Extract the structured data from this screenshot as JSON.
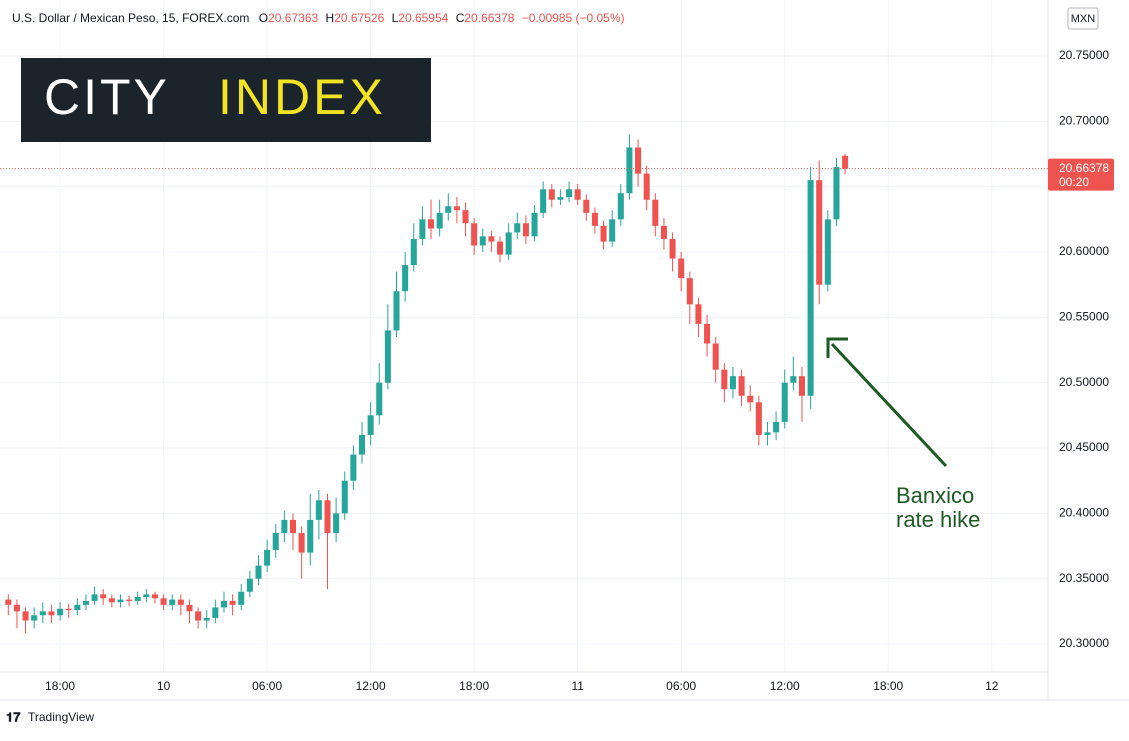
{
  "chart_data": {
    "type": "candlestick",
    "title": "U.S. Dollar / Mexican Peso, 15, FOREX.com",
    "ohlc_labels": [
      "O",
      "H",
      "L",
      "C"
    ],
    "change": "−0.00985 (−0.05%)",
    "currency": "MXN",
    "countdown": "00:20",
    "logo": [
      "CITY",
      "INDEX"
    ],
    "annotation": [
      "Banxico",
      "rate hike"
    ],
    "footer": "TradingView",
    "up_color": "#26a69a",
    "down_color": "#ef5350",
    "grid": true,
    "xlim": [
      14.75,
      75.26
    ],
    "xticks": [
      {
        "value": 18,
        "label": "18:00"
      },
      {
        "value": 24,
        "label": "10"
      },
      {
        "value": 30,
        "label": "06:00"
      },
      {
        "value": 36,
        "label": "12:00"
      },
      {
        "value": 42,
        "label": "18:00"
      },
      {
        "value": 48,
        "label": "11"
      },
      {
        "value": 54,
        "label": "06:00"
      },
      {
        "value": 60,
        "label": "12:00"
      },
      {
        "value": 66,
        "label": "18:00"
      },
      {
        "value": 72,
        "label": "12"
      }
    ],
    "ylim": [
      20.2786,
      20.7898
    ],
    "yticks": [
      {
        "value": 20.3,
        "label": "20.30000"
      },
      {
        "value": 20.35,
        "label": "20.35000"
      },
      {
        "value": 20.4,
        "label": "20.40000"
      },
      {
        "value": 20.45,
        "label": "20.45000"
      },
      {
        "value": 20.5,
        "label": "20.50000"
      },
      {
        "value": 20.55,
        "label": "20.55000"
      },
      {
        "value": 20.6,
        "label": "20.60000"
      },
      {
        "value": 20.65,
        "label": "20.65000"
      },
      {
        "value": 20.7,
        "label": "20.70000"
      },
      {
        "value": 20.75,
        "label": "20.75000"
      }
    ],
    "x": [
      15,
      15.5,
      16,
      16.5,
      17,
      17.5,
      18,
      18.5,
      19,
      19.5,
      20,
      20.5,
      21,
      21.5,
      22,
      22.5,
      23,
      23.5,
      24,
      24.5,
      25,
      25.5,
      26,
      26.5,
      27,
      27.5,
      28,
      28.5,
      29,
      29.5,
      30,
      30.5,
      31,
      31.5,
      32,
      32.5,
      33,
      33.5,
      34,
      34.5,
      35,
      35.5,
      36,
      36.5,
      37,
      37.5,
      38,
      38.5,
      39,
      39.5,
      40,
      40.5,
      41,
      41.5,
      42,
      42.5,
      43,
      43.5,
      44,
      44.5,
      45,
      45.5,
      46,
      46.5,
      47,
      47.5,
      48,
      48.5,
      49,
      49.5,
      50,
      50.5,
      51,
      51.5,
      52,
      52.5,
      53,
      53.5,
      54,
      54.5,
      55,
      55.5,
      56,
      56.5,
      57,
      57.5,
      58,
      58.5,
      59,
      59.5,
      60,
      60.5,
      61,
      61.5,
      62,
      62.5,
      63,
      63.5
    ],
    "open": [
      20.334,
      20.33,
      20.325,
      20.318,
      20.322,
      20.325,
      20.322,
      20.327,
      20.326,
      20.33,
      20.333,
      20.338,
      20.335,
      20.332,
      20.334,
      20.333,
      20.336,
      20.338,
      20.335,
      20.33,
      20.334,
      20.33,
      20.325,
      20.318,
      20.32,
      20.328,
      20.333,
      20.33,
      20.34,
      20.35,
      20.36,
      20.372,
      20.385,
      20.395,
      20.385,
      20.37,
      20.395,
      20.41,
      20.385,
      20.4,
      20.425,
      20.445,
      20.46,
      20.475,
      20.5,
      20.54,
      20.57,
      20.59,
      20.61,
      20.625,
      20.618,
      20.63,
      20.635,
      20.632,
      20.622,
      20.605,
      20.612,
      20.608,
      20.598,
      20.615,
      20.622,
      20.612,
      20.63,
      20.648,
      20.64,
      20.642,
      20.648,
      20.64,
      20.63,
      20.62,
      20.608,
      20.625,
      20.645,
      20.68,
      20.66,
      20.64,
      20.62,
      20.61,
      20.595,
      20.58,
      20.56,
      20.545,
      20.53,
      20.51,
      20.495,
      20.505,
      20.49,
      20.485,
      20.46,
      20.462,
      20.47,
      20.5,
      20.505,
      20.49,
      20.655,
      20.575,
      20.625,
      20.67363
    ],
    "high": [
      20.338,
      20.334,
      20.328,
      20.328,
      20.332,
      20.33,
      20.332,
      20.331,
      20.335,
      20.338,
      20.344,
      20.342,
      20.338,
      20.338,
      20.337,
      20.34,
      20.342,
      20.34,
      20.338,
      20.338,
      20.338,
      20.334,
      20.328,
      20.326,
      20.334,
      20.34,
      20.338,
      20.346,
      20.356,
      20.368,
      20.38,
      20.392,
      20.402,
      20.4,
      20.39,
      20.415,
      20.418,
      20.415,
      20.412,
      20.432,
      20.452,
      20.47,
      20.485,
      20.515,
      20.56,
      20.585,
      20.6,
      20.622,
      20.635,
      20.64,
      20.64,
      20.645,
      20.642,
      20.638,
      20.626,
      20.618,
      20.616,
      20.612,
      20.622,
      20.63,
      20.628,
      20.636,
      20.654,
      20.652,
      20.648,
      20.654,
      20.652,
      20.644,
      20.634,
      20.624,
      20.632,
      20.652,
      20.69,
      20.686,
      20.666,
      20.645,
      20.626,
      20.615,
      20.6,
      20.585,
      20.565,
      20.552,
      20.535,
      20.515,
      20.512,
      20.51,
      20.498,
      20.49,
      20.47,
      20.478,
      20.51,
      20.52,
      20.512,
      20.665,
      20.67,
      20.632,
      20.672,
      20.67526
    ],
    "low": [
      20.322,
      20.312,
      20.308,
      20.312,
      20.316,
      20.316,
      20.318,
      20.32,
      20.322,
      20.326,
      20.33,
      20.33,
      20.328,
      20.328,
      20.329,
      20.33,
      20.332,
      20.331,
      20.326,
      20.326,
      20.322,
      20.316,
      20.312,
      20.312,
      20.316,
      20.324,
      20.322,
      20.326,
      20.336,
      20.345,
      20.355,
      20.366,
      20.378,
      20.372,
      20.35,
      20.36,
      20.38,
      20.342,
      20.378,
      20.395,
      20.418,
      20.438,
      20.452,
      20.468,
      20.495,
      20.535,
      20.562,
      20.585,
      20.605,
      20.61,
      20.612,
      20.624,
      20.622,
      20.612,
      20.598,
      20.6,
      20.6,
      20.592,
      20.594,
      20.61,
      20.606,
      20.608,
      20.626,
      20.634,
      20.636,
      20.638,
      20.636,
      20.624,
      20.614,
      20.602,
      20.604,
      20.62,
      20.64,
      20.65,
      20.632,
      20.612,
      20.602,
      20.585,
      20.57,
      20.545,
      20.535,
      20.52,
      20.5,
      20.485,
      20.488,
      20.482,
      20.478,
      20.452,
      20.452,
      20.456,
      20.465,
      20.494,
      20.47,
      20.48,
      20.56,
      20.57,
      20.62,
      20.65954
    ],
    "close": [
      20.33,
      20.325,
      20.318,
      20.322,
      20.325,
      20.322,
      20.327,
      20.326,
      20.33,
      20.333,
      20.338,
      20.335,
      20.332,
      20.334,
      20.333,
      20.336,
      20.338,
      20.335,
      20.33,
      20.334,
      20.33,
      20.325,
      20.318,
      20.32,
      20.328,
      20.333,
      20.33,
      20.34,
      20.35,
      20.36,
      20.372,
      20.385,
      20.395,
      20.385,
      20.37,
      20.395,
      20.41,
      20.385,
      20.4,
      20.425,
      20.445,
      20.46,
      20.475,
      20.5,
      20.54,
      20.57,
      20.59,
      20.61,
      20.625,
      20.618,
      20.63,
      20.635,
      20.632,
      20.622,
      20.605,
      20.612,
      20.608,
      20.598,
      20.615,
      20.622,
      20.612,
      20.63,
      20.648,
      20.64,
      20.642,
      20.648,
      20.64,
      20.63,
      20.62,
      20.608,
      20.625,
      20.645,
      20.68,
      20.66,
      20.64,
      20.62,
      20.61,
      20.595,
      20.58,
      20.56,
      20.545,
      20.53,
      20.51,
      20.495,
      20.505,
      20.49,
      20.485,
      20.46,
      20.462,
      20.47,
      20.5,
      20.505,
      20.49,
      20.655,
      20.575,
      20.625,
      20.665,
      20.66378
    ]
  }
}
